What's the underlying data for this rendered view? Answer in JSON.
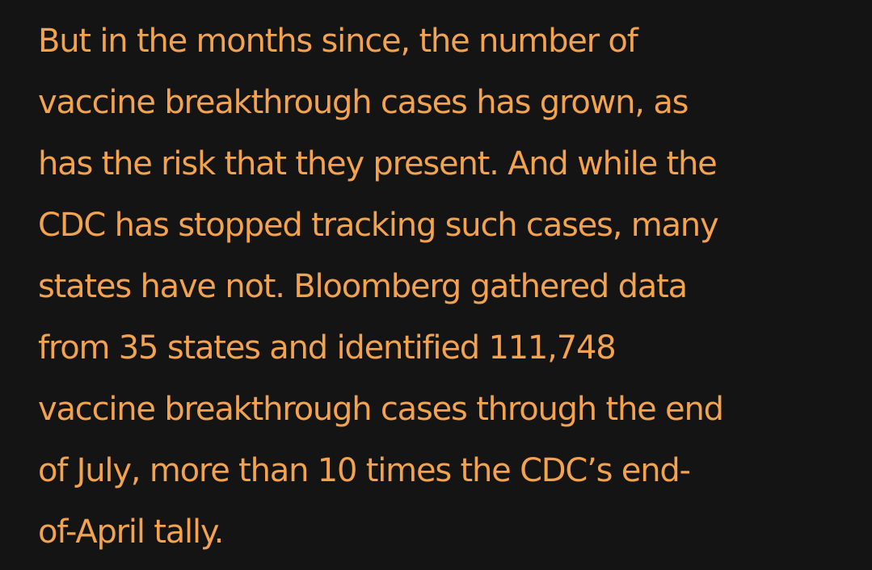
{
  "article": {
    "lines": [
      "But in the months since, the number of",
      "vaccine breakthrough cases has grown, as",
      "has the risk that they present. And while the",
      "CDC has stopped tracking such cases, many",
      "states have not. Bloomberg gathered data",
      "from 35 states and identified 111,748",
      "vaccine breakthrough cases through the end",
      "of July, more than 10 times the CDC’s end-",
      "of-April tally."
    ]
  },
  "colors": {
    "background": "#141414",
    "text": "#f3a24e"
  }
}
